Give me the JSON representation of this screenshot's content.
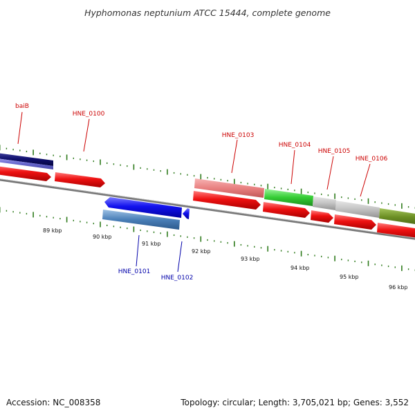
{
  "title": "Hyphomonas neptunium ATCC 15444, complete genome",
  "footer": {
    "accession": "Accession: NC_008358",
    "summary": "Topology: circular; Length: 3,705,021 bp; Genes: 3,552"
  },
  "colors": {
    "forward_label": "#cc0000",
    "reverse_label": "#0000aa",
    "tick": "#2d7a1a",
    "backbone": "#7a7a7a",
    "cds": "#ee1111"
  },
  "scale": {
    "unit": "kbp",
    "labels": [
      "89 kbp",
      "90 kbp",
      "91 kbp",
      "92 kbp",
      "93 kbp",
      "94 kbp",
      "95 kbp",
      "96 kbp"
    ]
  },
  "gene_labels": [
    {
      "name": "baiB",
      "strand": "forward"
    },
    {
      "name": "HNE_0100",
      "strand": "forward"
    },
    {
      "name": "HNE_0101",
      "strand": "reverse"
    },
    {
      "name": "HNE_0102",
      "strand": "reverse"
    },
    {
      "name": "HNE_0103",
      "strand": "forward"
    },
    {
      "name": "HNE_0104",
      "strand": "forward"
    },
    {
      "name": "HNE_0105",
      "strand": "forward"
    },
    {
      "name": "HNE_0106",
      "strand": "forward"
    }
  ]
}
